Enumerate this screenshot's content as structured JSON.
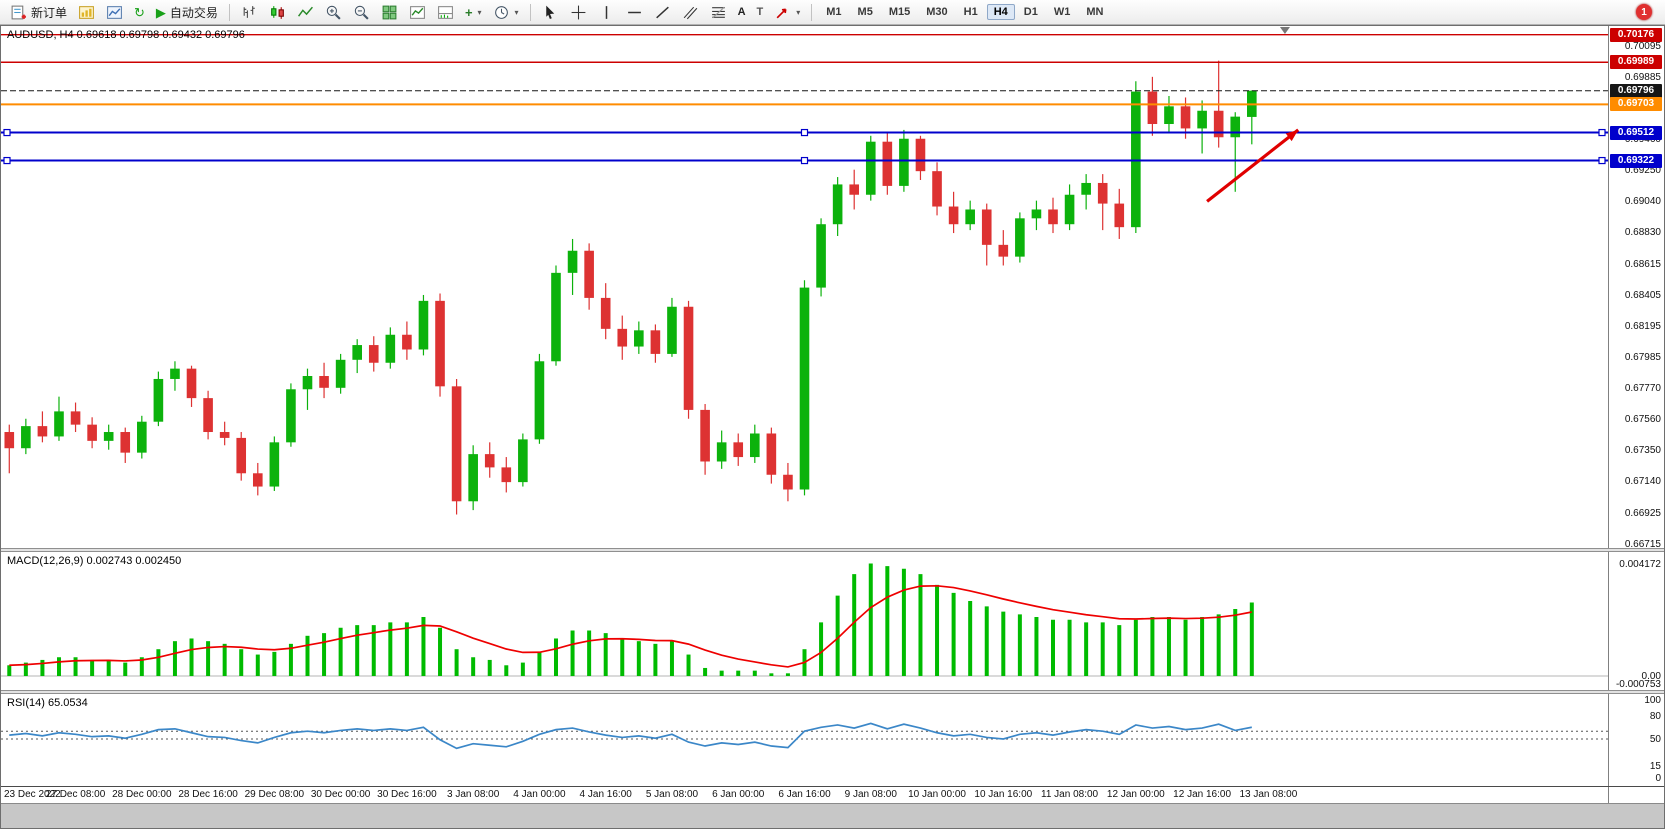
{
  "toolbar": {
    "new_order": "新订单",
    "autotrading": "自动交易",
    "timeframes": [
      "M1",
      "M5",
      "M15",
      "M30",
      "H1",
      "H4",
      "D1",
      "W1",
      "MN"
    ],
    "active_timeframe": "H4",
    "notification_badge": "1",
    "icon_glyphs": {
      "play": "▶",
      "refresh": "↻",
      "add": "+",
      "caret": "▾",
      "text_tool": "A",
      "label_tool": "T"
    }
  },
  "chart": {
    "title": "AUDUSD, H4  0.69618 0.69798 0.69432 0.69796",
    "symbol": "AUDUSD",
    "period": "H4",
    "open": "0.69618",
    "high": "0.69798",
    "low": "0.69432",
    "close": "0.69796"
  },
  "indicators": {
    "macd_label": "MACD(12,26,9) 0.002743 0.002450",
    "rsi_label": "RSI(14) 65.0534"
  },
  "colors": {
    "bull": "#0cb20c",
    "bear": "#dd3232",
    "macd_hist": "#00bb00",
    "macd_signal": "#ee0000",
    "rsi_line": "#3b87c8"
  },
  "chart_data": {
    "type": "candlestick",
    "symbol": "AUDUSD",
    "timeframe": "H4",
    "total_slots": 97,
    "label_every_n_bars": 4,
    "shift_marker_bar": 77,
    "x_labels": [
      "23 Dec 2022",
      "27 Dec 08:00",
      "28 Dec 00:00",
      "28 Dec 16:00",
      "29 Dec 08:00",
      "30 Dec 00:00",
      "30 Dec 16:00",
      "3 Jan 08:00",
      "4 Jan 00:00",
      "4 Jan 16:00",
      "5 Jan 08:00",
      "6 Jan 00:00",
      "6 Jan 16:00",
      "9 Jan 08:00",
      "10 Jan 00:00",
      "10 Jan 16:00",
      "11 Jan 08:00",
      "12 Jan 00:00",
      "12 Jan 16:00",
      "13 Jan 08:00"
    ],
    "price_axis": {
      "view_max": 0.70235,
      "view_min": 0.66693,
      "ticks": [
        "0.70095",
        "0.69885",
        "0.69675",
        "0.69460",
        "0.69250",
        "0.69040",
        "0.68830",
        "0.68615",
        "0.68405",
        "0.68195",
        "0.67985",
        "0.67770",
        "0.67560",
        "0.67350",
        "0.67140",
        "0.66925",
        "0.66715"
      ]
    },
    "hlines": [
      {
        "price": 0.70176,
        "label": "0.70176",
        "color": "#cc0000",
        "style": "solid",
        "width": 1.4,
        "badge": "#cc0000"
      },
      {
        "price": 0.69989,
        "label": "0.69989",
        "color": "#cc0000",
        "style": "solid",
        "width": 1.4,
        "badge": "#cc0000"
      },
      {
        "price": 0.69796,
        "label": "0.69796",
        "color": "#161616",
        "style": "dash",
        "width": 1,
        "badge": "#161616",
        "current": true
      },
      {
        "price": 0.69703,
        "label": "0.69703",
        "color": "#ff8c00",
        "style": "solid",
        "width": 2,
        "badge": "#ff8c00"
      },
      {
        "price": 0.69512,
        "label": "0.69512",
        "color": "#0000cc",
        "style": "solid",
        "width": 2,
        "badge": "#0000cc",
        "handles": true
      },
      {
        "price": 0.69322,
        "label": "0.69322",
        "color": "#0000cc",
        "style": "solid",
        "width": 2,
        "badge": "#0000cc",
        "handles": true
      }
    ],
    "trend_arrow": {
      "from_bar": 72.3,
      "from_price": 0.69045,
      "to_bar": 77.8,
      "to_price": 0.6953,
      "color": "#e00000"
    },
    "candles": [
      [
        0.6748,
        0.6753,
        0.672,
        0.6737
      ],
      [
        0.6737,
        0.6757,
        0.6733,
        0.6752
      ],
      [
        0.6752,
        0.6762,
        0.6741,
        0.6745
      ],
      [
        0.6745,
        0.6772,
        0.6742,
        0.6762
      ],
      [
        0.6762,
        0.6768,
        0.6748,
        0.6753
      ],
      [
        0.6753,
        0.6758,
        0.6737,
        0.6742
      ],
      [
        0.6742,
        0.6753,
        0.6736,
        0.6748
      ],
      [
        0.6748,
        0.6751,
        0.6727,
        0.6734
      ],
      [
        0.6734,
        0.6759,
        0.673,
        0.6755
      ],
      [
        0.6755,
        0.6789,
        0.6752,
        0.6784
      ],
      [
        0.6784,
        0.6796,
        0.6776,
        0.6791
      ],
      [
        0.6791,
        0.6793,
        0.6765,
        0.6771
      ],
      [
        0.6771,
        0.6776,
        0.6743,
        0.6748
      ],
      [
        0.6748,
        0.6755,
        0.6739,
        0.6744
      ],
      [
        0.6744,
        0.6748,
        0.6715,
        0.672
      ],
      [
        0.672,
        0.6727,
        0.6705,
        0.6711
      ],
      [
        0.6711,
        0.6745,
        0.6708,
        0.6741
      ],
      [
        0.6741,
        0.6781,
        0.6738,
        0.6777
      ],
      [
        0.6777,
        0.6791,
        0.6763,
        0.6786
      ],
      [
        0.6786,
        0.6795,
        0.6771,
        0.6778
      ],
      [
        0.6778,
        0.6801,
        0.6774,
        0.6797
      ],
      [
        0.6797,
        0.6811,
        0.6788,
        0.6807
      ],
      [
        0.6807,
        0.6813,
        0.6789,
        0.6795
      ],
      [
        0.6795,
        0.6819,
        0.6791,
        0.6814
      ],
      [
        0.6814,
        0.6823,
        0.6797,
        0.6804
      ],
      [
        0.6804,
        0.6841,
        0.68,
        0.6837
      ],
      [
        0.6837,
        0.6842,
        0.6772,
        0.6779
      ],
      [
        0.6779,
        0.6784,
        0.6692,
        0.6701
      ],
      [
        0.6701,
        0.6739,
        0.6695,
        0.6733
      ],
      [
        0.6733,
        0.6741,
        0.6717,
        0.6724
      ],
      [
        0.6724,
        0.6731,
        0.6707,
        0.6714
      ],
      [
        0.6714,
        0.6747,
        0.6711,
        0.6743
      ],
      [
        0.6743,
        0.6801,
        0.674,
        0.6796
      ],
      [
        0.6796,
        0.6861,
        0.6793,
        0.6856
      ],
      [
        0.6856,
        0.6879,
        0.6841,
        0.6871
      ],
      [
        0.6871,
        0.6876,
        0.6831,
        0.6839
      ],
      [
        0.6839,
        0.6849,
        0.6811,
        0.6818
      ],
      [
        0.6818,
        0.6827,
        0.6797,
        0.6806
      ],
      [
        0.6806,
        0.6823,
        0.6801,
        0.6817
      ],
      [
        0.6817,
        0.6821,
        0.6795,
        0.6801
      ],
      [
        0.6801,
        0.6839,
        0.6799,
        0.6833
      ],
      [
        0.6833,
        0.6837,
        0.6757,
        0.6763
      ],
      [
        0.6763,
        0.6767,
        0.6719,
        0.6728
      ],
      [
        0.6728,
        0.6749,
        0.6723,
        0.6741
      ],
      [
        0.6741,
        0.6747,
        0.6725,
        0.6731
      ],
      [
        0.6731,
        0.6753,
        0.6727,
        0.6747
      ],
      [
        0.6747,
        0.6751,
        0.6713,
        0.6719
      ],
      [
        0.6719,
        0.6727,
        0.6701,
        0.6709
      ],
      [
        0.6709,
        0.6851,
        0.6705,
        0.6846
      ],
      [
        0.6846,
        0.6893,
        0.684,
        0.6889
      ],
      [
        0.6889,
        0.6921,
        0.6881,
        0.6916
      ],
      [
        0.6916,
        0.6926,
        0.6899,
        0.6909
      ],
      [
        0.6909,
        0.6949,
        0.6905,
        0.6945
      ],
      [
        0.6945,
        0.6951,
        0.6909,
        0.6915
      ],
      [
        0.6915,
        0.6953,
        0.6911,
        0.6947
      ],
      [
        0.6947,
        0.6949,
        0.6919,
        0.6925
      ],
      [
        0.6925,
        0.6931,
        0.6895,
        0.6901
      ],
      [
        0.6901,
        0.6911,
        0.6883,
        0.6889
      ],
      [
        0.6889,
        0.6905,
        0.6885,
        0.6899
      ],
      [
        0.6899,
        0.6903,
        0.6861,
        0.6875
      ],
      [
        0.6875,
        0.6885,
        0.6861,
        0.6867
      ],
      [
        0.6867,
        0.6897,
        0.6863,
        0.6893
      ],
      [
        0.6893,
        0.6905,
        0.6885,
        0.6899
      ],
      [
        0.6899,
        0.6907,
        0.6883,
        0.6889
      ],
      [
        0.6889,
        0.6916,
        0.6885,
        0.6909
      ],
      [
        0.6909,
        0.6923,
        0.6899,
        0.6917
      ],
      [
        0.6917,
        0.6923,
        0.6885,
        0.6903
      ],
      [
        0.6903,
        0.6913,
        0.6879,
        0.6887
      ],
      [
        0.6887,
        0.6986,
        0.6883,
        0.6979
      ],
      [
        0.6979,
        0.6989,
        0.6949,
        0.6957
      ],
      [
        0.6957,
        0.6976,
        0.6951,
        0.6969
      ],
      [
        0.6969,
        0.6975,
        0.6947,
        0.6954
      ],
      [
        0.6954,
        0.6973,
        0.6937,
        0.6966
      ],
      [
        0.6966,
        0.7,
        0.6941,
        0.6948
      ],
      [
        0.6948,
        0.6965,
        0.6911,
        0.6962
      ],
      [
        0.69618,
        0.69798,
        0.69432,
        0.69796
      ]
    ],
    "macd": {
      "params": "12,26,9",
      "main_last": 0.002743,
      "signal_last": 0.00245,
      "axis": [
        {
          "text": "0.004172",
          "value": 0.004172
        },
        {
          "text": "0.00",
          "value": 0
        },
        {
          "text": "-0.000753",
          "value": -0.000753
        }
      ],
      "values": [
        0.0004,
        0.0005,
        0.0006,
        0.0007,
        0.0007,
        0.0006,
        0.0006,
        0.0005,
        0.0007,
        0.001,
        0.0013,
        0.0014,
        0.0013,
        0.0012,
        0.001,
        0.0008,
        0.0009,
        0.0012,
        0.0015,
        0.0016,
        0.0018,
        0.0019,
        0.0019,
        0.002,
        0.002,
        0.0022,
        0.0018,
        0.001,
        0.0007,
        0.0006,
        0.0004,
        0.0005,
        0.0009,
        0.0014,
        0.0017,
        0.0017,
        0.0016,
        0.0014,
        0.0013,
        0.0012,
        0.0013,
        0.0008,
        0.0003,
        0.0002,
        0.0002,
        0.0002,
        0.0001,
        0.0001,
        0.001,
        0.002,
        0.003,
        0.0038,
        0.0042,
        0.0041,
        0.004,
        0.0038,
        0.0034,
        0.0031,
        0.0028,
        0.0026,
        0.0024,
        0.0023,
        0.0022,
        0.0021,
        0.0021,
        0.002,
        0.002,
        0.0019,
        0.0021,
        0.0022,
        0.0022,
        0.0021,
        0.0022,
        0.0023,
        0.0025,
        0.002743
      ]
    },
    "rsi": {
      "params": "14",
      "last": 65.0534,
      "levels": [
        60,
        50
      ],
      "axis": [
        {
          "text": "100",
          "value": 100
        },
        {
          "text": "80",
          "value": 80
        },
        {
          "text": "50",
          "value": 50
        },
        {
          "text": "15",
          "value": 15
        },
        {
          "text": "0",
          "value": 0
        }
      ],
      "values": [
        55,
        57,
        54,
        58,
        56,
        53,
        54,
        51,
        56,
        62,
        63,
        58,
        53,
        52,
        48,
        45,
        52,
        58,
        60,
        58,
        61,
        63,
        61,
        63,
        61,
        65,
        49,
        38,
        44,
        42,
        40,
        47,
        56,
        62,
        64,
        59,
        55,
        52,
        54,
        51,
        56,
        46,
        41,
        45,
        43,
        46,
        41,
        39,
        60,
        65,
        68,
        64,
        70,
        63,
        69,
        64,
        58,
        54,
        56,
        52,
        50,
        56,
        58,
        55,
        59,
        62,
        60,
        56,
        68,
        64,
        66,
        62,
        64,
        69,
        61,
        65.05
      ]
    }
  }
}
